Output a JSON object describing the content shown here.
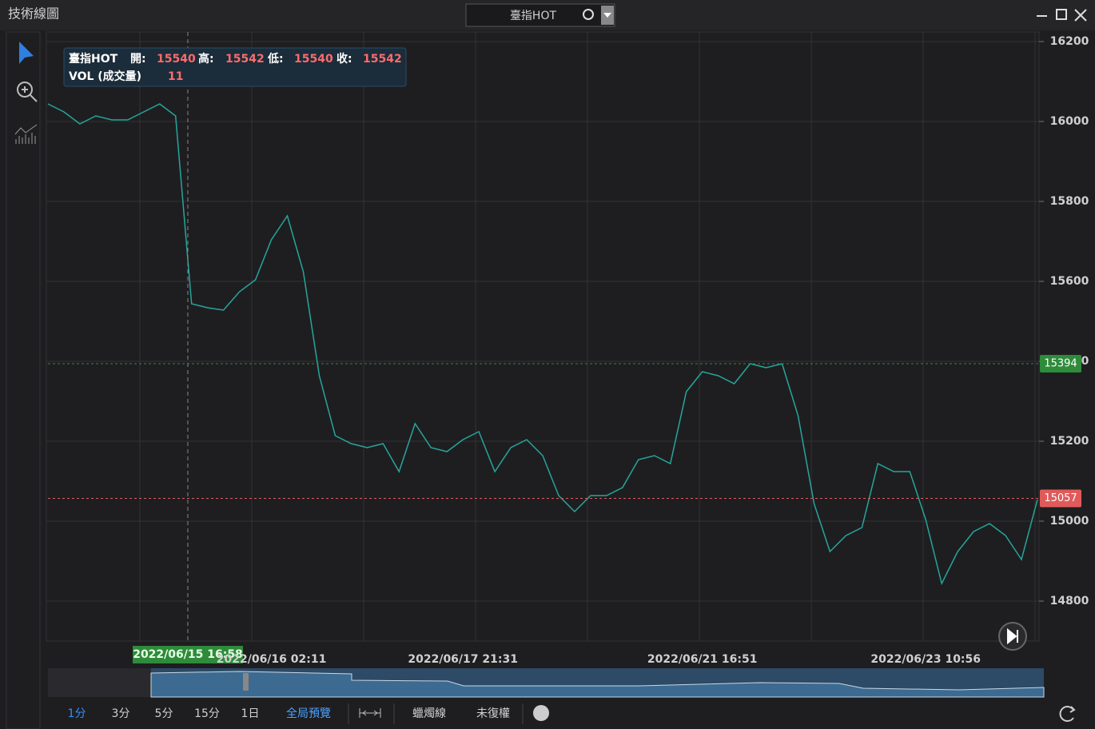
{
  "window": {
    "title": "技術線圖"
  },
  "search": {
    "symbol": "臺指HOT"
  },
  "info": {
    "symbol": "臺指HOT",
    "open_label": "開:",
    "open": 15540,
    "high_label": "高:",
    "high": 15542,
    "low_label": "低:",
    "low": 15540,
    "close_label": "收:",
    "close": 15542,
    "vol_label": "VOL (成交量)",
    "vol": 11
  },
  "crosshair": {
    "x_label": "2022/06/15 16:58"
  },
  "chart_data": {
    "type": "line",
    "color": "#26a69a",
    "categories": [
      null,
      null,
      null,
      null,
      null,
      null,
      null,
      null,
      null,
      null,
      null,
      null,
      null,
      null,
      "2022/06/16 02:11",
      null,
      null,
      null,
      null,
      null,
      null,
      null,
      null,
      null,
      null,
      null,
      "2022/06/17 21:31",
      null,
      null,
      null,
      null,
      null,
      null,
      null,
      null,
      null,
      null,
      null,
      null,
      null,
      null,
      "2022/06/21 16:51",
      null,
      null,
      null,
      null,
      null,
      null,
      null,
      null,
      null,
      null,
      null,
      null,
      null,
      "2022/06/23 10:56",
      null,
      null,
      null,
      null,
      null,
      null,
      null
    ],
    "values": [
      16044,
      16024,
      15994,
      16014,
      16004,
      16004,
      16024,
      16044,
      16014,
      15544,
      15534,
      15528,
      15574,
      15604,
      15704,
      15764,
      15624,
      15364,
      15214,
      15194,
      15184,
      15194,
      15124,
      15244,
      15184,
      15174,
      15204,
      15224,
      15124,
      15184,
      15204,
      15164,
      15064,
      15024,
      15064,
      15064,
      15084,
      15154,
      15164,
      15144,
      15324,
      15374,
      15364,
      15344,
      15394,
      15384,
      15394,
      15264,
      15044,
      14924,
      14964,
      14984,
      15144,
      15124,
      15124,
      15004,
      14844,
      14924,
      14974,
      14994,
      14964,
      14904,
      15054
    ],
    "ylim": [
      14700,
      16224
    ],
    "yticks": [
      14800,
      15000,
      15200,
      15400,
      15600,
      15800,
      16000,
      16200
    ],
    "grid": true,
    "price_lines": [
      {
        "value": 15394,
        "color": "#2e8b3a"
      },
      {
        "value": 15057,
        "color": "#e05a5a"
      }
    ]
  },
  "toolbar": {
    "periods": [
      "1分",
      "3分",
      "5分",
      "15分",
      "1日"
    ],
    "overview": "全局預覽",
    "chart_style": "蠟燭線",
    "adjust": "未復權"
  }
}
